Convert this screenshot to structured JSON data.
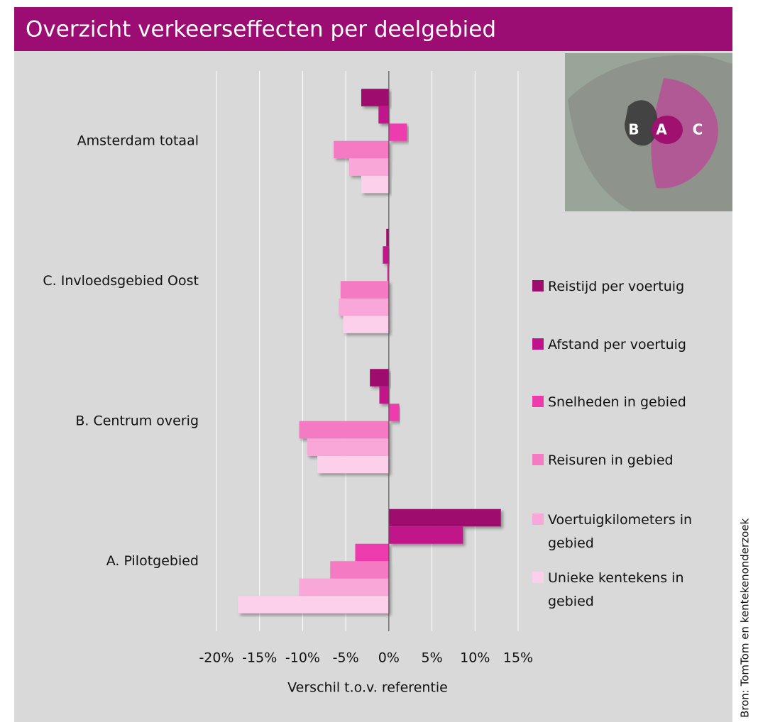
{
  "chart_data": {
    "type": "barh",
    "title": "Overzicht verkeerseffecten per deelgebied",
    "xlabel": "Verschil t.o.v. referentie",
    "source": "Bron:  TomTom en kentekenonderzoek",
    "map_labels": [
      "B",
      "A",
      "C"
    ],
    "categories": [
      "Amsterdam totaal",
      "C. Invloedsgebied Oost",
      "B. Centrum overig",
      "A. Pilotgebied"
    ],
    "series": [
      {
        "name": "Reistijd per voertuig",
        "color": "#9e0d6e",
        "values": [
          -3.2,
          -0.3,
          -2.2,
          13.0
        ]
      },
      {
        "name": "Afstand per voertuig",
        "color": "#c0128a",
        "values": [
          -1.2,
          -0.7,
          -1.1,
          8.6
        ]
      },
      {
        "name": "Snelheden in gebied",
        "color": "#ee3aad",
        "values": [
          2.1,
          -0.2,
          1.2,
          -3.9
        ]
      },
      {
        "name": "Reisuren in gebied",
        "color": "#f57ac4",
        "values": [
          -6.4,
          -5.6,
          -10.4,
          -6.8
        ]
      },
      {
        "name": "Voertuigkilometers in gebied",
        "color": "#f9a6d8",
        "values": [
          -4.6,
          -5.8,
          -9.5,
          -10.4
        ]
      },
      {
        "name": "Unieke kentekens in gebied",
        "color": "#fcd0ea",
        "values": [
          -3.2,
          -5.3,
          -8.3,
          -17.5
        ]
      }
    ],
    "xlim": [
      -20,
      15
    ],
    "xticks": [
      {
        "value": -20,
        "label": "-20%"
      },
      {
        "value": -15,
        "label": "-15%"
      },
      {
        "value": -10,
        "label": "-10%"
      },
      {
        "value": -5,
        "label": "-5%"
      },
      {
        "value": 0,
        "label": "0%"
      },
      {
        "value": 5,
        "label": "5%"
      },
      {
        "value": 10,
        "label": "10%"
      },
      {
        "value": 15,
        "label": "15%"
      }
    ],
    "grid": true
  }
}
